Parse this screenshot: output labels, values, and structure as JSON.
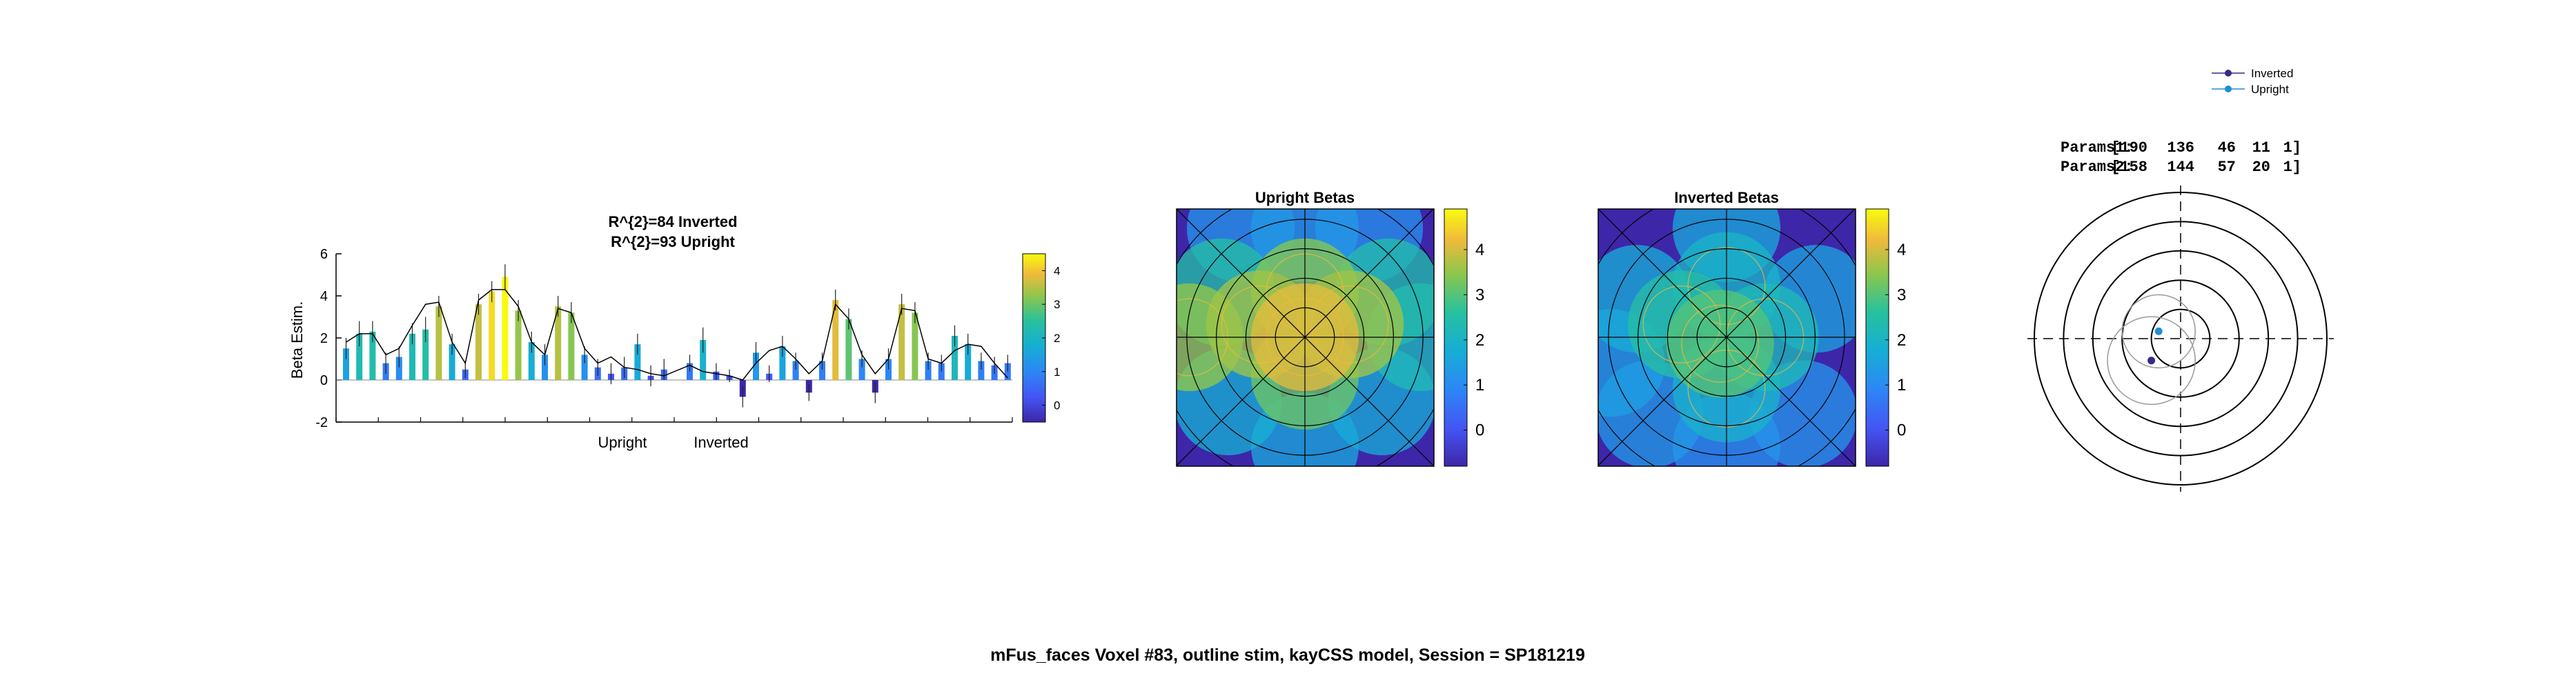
{
  "colors": {
    "low": "#3e26a8",
    "high": "#f9fb0e",
    "line": "#000000",
    "inverted": "#352a87",
    "upright": "#1e8fd2"
  },
  "chart_data": [
    {
      "type": "bar",
      "title": [
        "R^{2}=84 Inverted",
        "R^{2}=93 Upright"
      ],
      "ylabel": "Beta Estim.",
      "ylim": [
        -2,
        6
      ],
      "yticks": [
        "-2",
        "0",
        "2",
        "4",
        "6"
      ],
      "xtick_labels": [
        "Upright",
        "Inverted"
      ],
      "colorbar_ticks": [
        "0",
        "1",
        "2",
        "3",
        "4"
      ],
      "colorbar_range": [
        -0.5,
        4.5
      ],
      "groups": [
        {
          "name": "Upright",
          "values": [
            1.5,
            2.2,
            2.3,
            0.8,
            1.1,
            2.2,
            2.4,
            3.5,
            1.7,
            0.5,
            3.6,
            4.2,
            4.9,
            3.3,
            1.8,
            1.2,
            3.5,
            3.2,
            1.2,
            0.6,
            0.3,
            0.6,
            1.7,
            0.2,
            0.5
          ],
          "errors": [
            0.5,
            0.6,
            0.5,
            0.5,
            0.5,
            0.5,
            0.6,
            0.5,
            0.5,
            0.4,
            0.5,
            0.5,
            0.6,
            0.5,
            0.5,
            0.5,
            0.5,
            0.5,
            0.4,
            0.4,
            0.5,
            0.5,
            0.5,
            0.5,
            0.5
          ],
          "fit": [
            1.8,
            2.2,
            2.2,
            1.2,
            1.5,
            2.6,
            3.6,
            3.7,
            1.8,
            0.8,
            3.8,
            4.3,
            4.3,
            3.5,
            1.8,
            1.2,
            3.4,
            3.2,
            1.5,
            0.8,
            1.1,
            0.6,
            0.5,
            0.3,
            0.2
          ]
        },
        {
          "name": "Inverted",
          "values": [
            0.8,
            1.9,
            0.4,
            0.2,
            -0.8,
            1.3,
            0.3,
            1.6,
            0.9,
            -0.6,
            0.9,
            3.8,
            2.9,
            1.0,
            -0.6,
            1.0,
            3.6,
            3.2,
            0.9,
            0.8,
            2.1,
            1.7,
            0.9,
            0.7,
            0.8
          ],
          "errors": [
            0.4,
            0.6,
            0.4,
            0.3,
            0.5,
            0.5,
            0.4,
            0.5,
            0.4,
            0.4,
            0.4,
            0.5,
            0.5,
            0.4,
            0.5,
            0.5,
            0.5,
            0.5,
            0.4,
            0.4,
            0.5,
            0.5,
            0.4,
            0.4,
            0.4
          ],
          "fit": [
            0.7,
            0.4,
            0.3,
            0.2,
            0.0,
            0.8,
            1.4,
            1.6,
            1.0,
            0.3,
            0.9,
            3.6,
            2.9,
            1.2,
            0.3,
            1.0,
            3.4,
            3.3,
            1.0,
            0.8,
            1.4,
            1.7,
            1.6,
            0.8,
            0.1
          ]
        }
      ]
    },
    {
      "type": "heatmap",
      "title": "Upright Betas",
      "colorbar_ticks": [
        "0",
        "1",
        "2",
        "3",
        "4"
      ],
      "colorbar_range": [
        -0.8,
        4.9
      ],
      "grid_rings": 5,
      "grid_spokes": 8,
      "blobs": [
        {
          "x": 0.0,
          "y": 0.0,
          "v": 4.1
        },
        {
          "x": -0.35,
          "y": 0.1,
          "v": 3.6
        },
        {
          "x": 0.35,
          "y": 0.1,
          "v": 3.6
        },
        {
          "x": 0.0,
          "y": 0.35,
          "v": 3.4
        },
        {
          "x": 0.0,
          "y": -0.3,
          "v": 3.2
        },
        {
          "x": -0.65,
          "y": 0.35,
          "v": 2.5
        },
        {
          "x": 0.65,
          "y": 0.35,
          "v": 2.4
        },
        {
          "x": -0.9,
          "y": 0.0,
          "v": 3.5
        },
        {
          "x": 0.9,
          "y": 0.0,
          "v": 2.2
        },
        {
          "x": -0.6,
          "y": -0.5,
          "v": 1.8
        },
        {
          "x": 0.6,
          "y": -0.5,
          "v": 1.7
        },
        {
          "x": 0.0,
          "y": 0.85,
          "v": 1.3
        },
        {
          "x": 0.0,
          "y": -0.85,
          "v": 1.6
        },
        {
          "x": -0.5,
          "y": 0.85,
          "v": 1.2
        },
        {
          "x": 0.5,
          "y": 0.85,
          "v": 1.1
        }
      ]
    },
    {
      "type": "heatmap",
      "title": "Inverted Betas",
      "colorbar_ticks": [
        "0",
        "1",
        "2",
        "3",
        "4"
      ],
      "colorbar_range": [
        -0.8,
        4.9
      ],
      "grid_rings": 5,
      "grid_spokes": 8,
      "blobs": [
        {
          "x": -0.05,
          "y": -0.05,
          "v": 3.0
        },
        {
          "x": -0.35,
          "y": 0.1,
          "v": 2.5
        },
        {
          "x": 0.3,
          "y": 0.0,
          "v": 2.2
        },
        {
          "x": 0.0,
          "y": 0.4,
          "v": 2.0
        },
        {
          "x": 0.0,
          "y": -0.4,
          "v": 1.9
        },
        {
          "x": -0.7,
          "y": 0.3,
          "v": 1.7
        },
        {
          "x": 0.7,
          "y": 0.3,
          "v": 1.5
        },
        {
          "x": -0.9,
          "y": -0.2,
          "v": 1.4
        },
        {
          "x": 0.6,
          "y": -0.6,
          "v": 1.2
        },
        {
          "x": -0.6,
          "y": -0.6,
          "v": 1.3
        },
        {
          "x": 0.0,
          "y": 0.85,
          "v": 1.6
        },
        {
          "x": 0.0,
          "y": -0.85,
          "v": 1.1
        }
      ]
    },
    {
      "type": "scatter",
      "params_label": [
        "Params1:",
        "Params2:"
      ],
      "params": [
        [
          "[190",
          "136",
          "46",
          "11",
          "1]"
        ],
        [
          "[158",
          "144",
          "57",
          "20",
          "1]"
        ]
      ],
      "legend": [
        "Inverted",
        "Upright"
      ],
      "legend_position": "top-right",
      "rings": [
        0.2,
        0.4,
        0.6,
        0.8,
        1.0
      ],
      "points": [
        {
          "name": "Inverted",
          "x": -0.2,
          "y": -0.15
        },
        {
          "name": "Upright",
          "x": -0.15,
          "y": 0.05
        }
      ],
      "prf": [
        {
          "name": "Inverted",
          "x": -0.2,
          "y": -0.15,
          "r": 0.3
        },
        {
          "name": "Upright",
          "x": -0.15,
          "y": 0.05,
          "r": 0.25
        }
      ]
    }
  ],
  "footer": "mFus_faces Voxel #83, outline stim, kayCSS model, Session = SP181219"
}
